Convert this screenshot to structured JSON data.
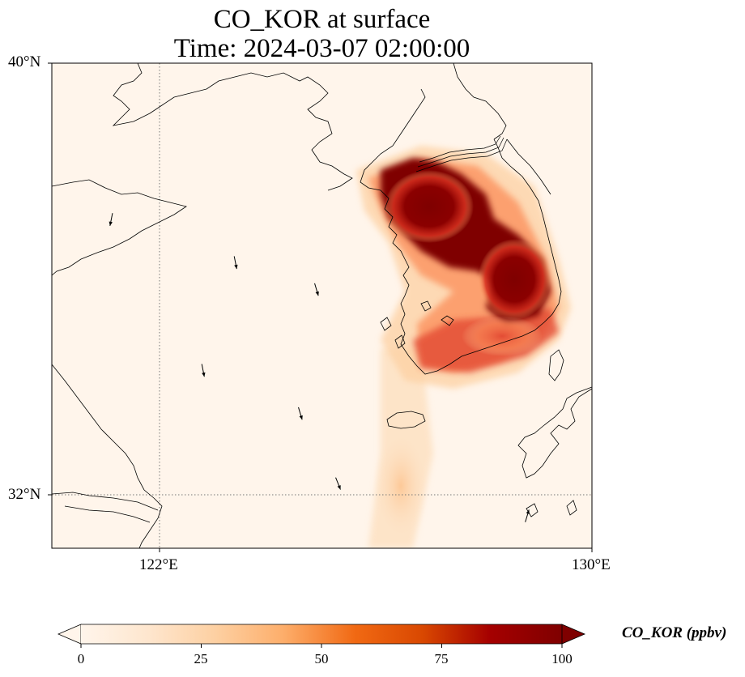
{
  "title": {
    "line1": "CO_KOR at surface",
    "line2": "Time: 2024-03-07 02:00:00"
  },
  "axes": {
    "lat_labels": [
      "40°N",
      "32°N"
    ],
    "lon_labels": [
      "122°E",
      "130°E"
    ],
    "extent": {
      "lon_min": 120,
      "lon_max": 130,
      "lat_min": 31,
      "lat_max": 40
    },
    "gridlines": {
      "lon": [
        122
      ],
      "lat": [
        32
      ],
      "style": "dotted"
    }
  },
  "colorbar": {
    "label": "CO_KOR (ppbv)",
    "ticks": [
      "0",
      "25",
      "50",
      "75",
      "100"
    ],
    "range": [
      0,
      100
    ],
    "extend": "both",
    "colormap": [
      "#fff5eb",
      "#fee6ce",
      "#fdd0a2",
      "#fdae6b",
      "#f16913",
      "#d94801",
      "#a50000",
      "#7f0000"
    ]
  },
  "chart_data": {
    "type": "heatmap",
    "variable": "CO_KOR",
    "level": "surface",
    "time": "2024-03-07 02:00:00",
    "units": "ppbv",
    "vmin": 0,
    "vmax": 100,
    "plumes": [
      {
        "lon": 126.8,
        "lat": 37.5,
        "value": 100
      },
      {
        "lon": 127.2,
        "lat": 37.1,
        "value": 100
      },
      {
        "lon": 128.6,
        "lat": 36.2,
        "value": 100
      },
      {
        "lon": 129.0,
        "lat": 35.6,
        "value": 100
      },
      {
        "lon": 128.2,
        "lat": 34.9,
        "value": 80
      },
      {
        "lon": 126.9,
        "lat": 35.1,
        "value": 55
      },
      {
        "lon": 126.4,
        "lat": 33.8,
        "value": 15
      }
    ],
    "wind_vectors": [
      {
        "lon": 121.1,
        "lat": 37.1,
        "u": -0.2,
        "v": -1.0
      },
      {
        "lon": 123.4,
        "lat": 36.3,
        "u": 0.2,
        "v": -1.0
      },
      {
        "lon": 124.9,
        "lat": 35.8,
        "u": 0.3,
        "v": -1.0
      },
      {
        "lon": 122.8,
        "lat": 34.3,
        "u": 0.2,
        "v": -1.0
      },
      {
        "lon": 124.6,
        "lat": 33.5,
        "u": 0.3,
        "v": -1.0
      },
      {
        "lon": 125.3,
        "lat": 32.2,
        "u": 0.4,
        "v": -1.0
      },
      {
        "lon": 128.8,
        "lat": 31.6,
        "u": 0.3,
        "v": 1.0
      }
    ]
  }
}
